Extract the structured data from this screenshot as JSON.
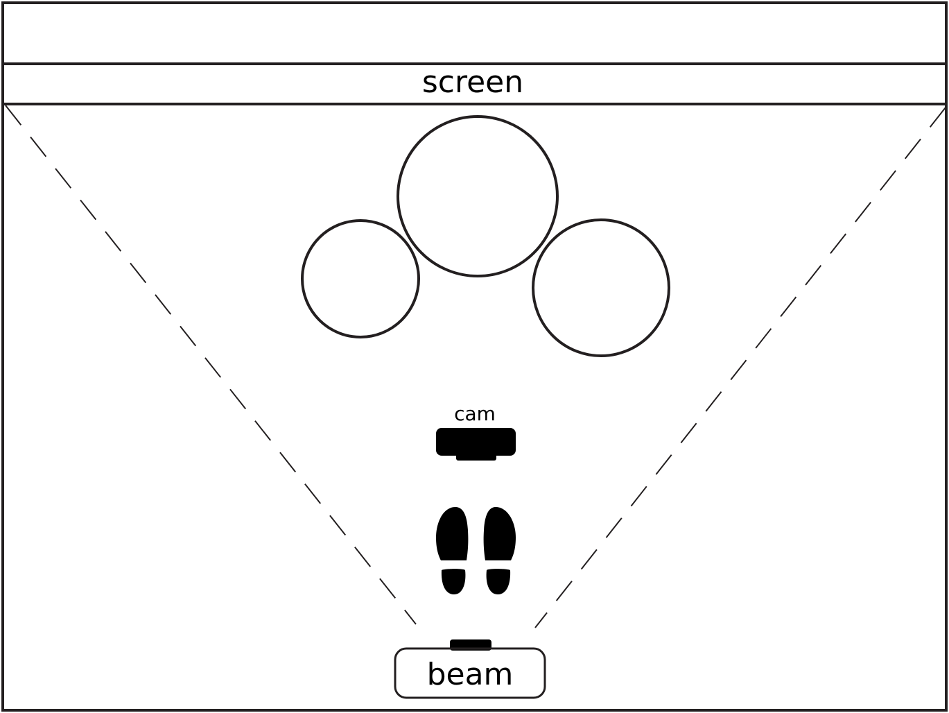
{
  "labels": {
    "screen": "screen",
    "cam": "cam",
    "beam": "beam"
  },
  "colors": {
    "stroke": "#231f20",
    "fill": "#000000",
    "background": "#ffffff"
  },
  "icons": {
    "camera": "camera-icon",
    "footprints": "footprints-icon",
    "projector": "projector-icon"
  }
}
